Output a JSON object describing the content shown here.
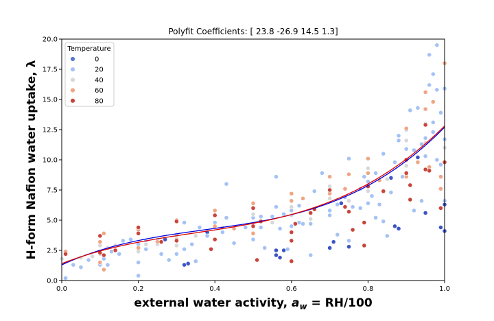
{
  "chart_data": {
    "type": "scatter",
    "title": "Polyfit Coefficients: [ 23.8 -26.9  14.5   1.3]",
    "xlabel": "external water activity, a_w = RH/100",
    "ylabel": "H-form Nafion water uptake, λ",
    "xlim": [
      0,
      1
    ],
    "ylim": [
      0,
      20
    ],
    "xticks": [
      "0.0",
      "0.2",
      "0.4",
      "0.6",
      "0.8",
      "1.0"
    ],
    "yticks": [
      "0.0",
      "2.5",
      "5.0",
      "7.5",
      "10.0",
      "12.5",
      "15.0",
      "17.5",
      "20.0"
    ],
    "grid": false,
    "legend": {
      "title": "Temperature",
      "position": "top-left",
      "entries": [
        {
          "label": "0",
          "color": "#5a78cf"
        },
        {
          "label": "20",
          "color": "#a5c2f5"
        },
        {
          "label": "40",
          "color": "#d8d8d8"
        },
        {
          "label": "60",
          "color": "#f0a583"
        },
        {
          "label": "80",
          "color": "#c8453b"
        }
      ]
    },
    "fit_curves": [
      {
        "color": "#0000dd",
        "coefficients": [
          23.8,
          -26.9,
          14.5,
          1.3
        ],
        "degree_order": "highest-first"
      },
      {
        "color": "#dd0000",
        "coefficients": [
          20.9,
          -21.9,
          12.4,
          1.4
        ],
        "degree_order": "highest-first"
      }
    ],
    "series": [
      {
        "temperature": "0",
        "color": "#3d55c4",
        "points": [
          [
            0.27,
            3.4
          ],
          [
            0.32,
            1.3
          ],
          [
            0.33,
            1.4
          ],
          [
            0.38,
            4.0
          ],
          [
            0.56,
            2.1
          ],
          [
            0.56,
            2.5
          ],
          [
            0.57,
            1.9
          ],
          [
            0.58,
            2.5
          ],
          [
            0.7,
            2.7
          ],
          [
            0.71,
            3.2
          ],
          [
            0.73,
            6.4
          ],
          [
            0.75,
            2.8
          ],
          [
            0.86,
            8.5
          ],
          [
            0.87,
            4.5
          ],
          [
            0.88,
            4.3
          ],
          [
            0.93,
            10.2
          ],
          [
            0.95,
            5.6
          ],
          [
            0.99,
            4.4
          ],
          [
            1.0,
            6.3
          ],
          [
            1.0,
            4.1
          ]
        ]
      },
      {
        "temperature": "20",
        "color": "#a5c2f5",
        "points": [
          [
            0.01,
            0.2
          ],
          [
            0.03,
            1.3
          ],
          [
            0.05,
            1.1
          ],
          [
            0.07,
            1.7
          ],
          [
            0.1,
            1.3
          ],
          [
            0.1,
            2.4
          ],
          [
            0.11,
            1.8
          ],
          [
            0.12,
            1.3
          ],
          [
            0.13,
            2.4
          ],
          [
            0.15,
            2.2
          ],
          [
            0.16,
            3.3
          ],
          [
            0.18,
            3.4
          ],
          [
            0.2,
            1.5
          ],
          [
            0.2,
            0.4
          ],
          [
            0.2,
            3.0
          ],
          [
            0.22,
            2.6
          ],
          [
            0.22,
            3.3
          ],
          [
            0.25,
            3.4
          ],
          [
            0.26,
            2.2
          ],
          [
            0.28,
            1.7
          ],
          [
            0.3,
            2.2
          ],
          [
            0.3,
            3.8
          ],
          [
            0.32,
            2.6
          ],
          [
            0.32,
            4.8
          ],
          [
            0.34,
            3.0
          ],
          [
            0.35,
            1.6
          ],
          [
            0.36,
            4.4
          ],
          [
            0.38,
            3.7
          ],
          [
            0.4,
            4.8
          ],
          [
            0.42,
            4.0
          ],
          [
            0.43,
            5.2
          ],
          [
            0.43,
            8.0
          ],
          [
            0.45,
            4.3
          ],
          [
            0.45,
            3.1
          ],
          [
            0.48,
            4.4
          ],
          [
            0.5,
            3.4
          ],
          [
            0.5,
            5.2
          ],
          [
            0.52,
            5.3
          ],
          [
            0.52,
            4.4
          ],
          [
            0.53,
            2.7
          ],
          [
            0.55,
            5.3
          ],
          [
            0.56,
            6.1
          ],
          [
            0.56,
            8.6
          ],
          [
            0.57,
            4.3
          ],
          [
            0.58,
            5.5
          ],
          [
            0.59,
            2.6
          ],
          [
            0.6,
            4.5
          ],
          [
            0.6,
            5.8
          ],
          [
            0.62,
            6.2
          ],
          [
            0.62,
            4.8
          ],
          [
            0.63,
            4.7
          ],
          [
            0.65,
            4.7
          ],
          [
            0.65,
            2.1
          ],
          [
            0.66,
            7.4
          ],
          [
            0.68,
            8.9
          ],
          [
            0.7,
            5.4
          ],
          [
            0.7,
            5.8
          ],
          [
            0.72,
            3.8
          ],
          [
            0.72,
            6.3
          ],
          [
            0.74,
            6.9
          ],
          [
            0.75,
            10.1
          ],
          [
            0.75,
            3.3
          ],
          [
            0.76,
            6.1
          ],
          [
            0.78,
            6.0
          ],
          [
            0.78,
            7.6
          ],
          [
            0.79,
            8.6
          ],
          [
            0.8,
            8.2
          ],
          [
            0.8,
            6.4
          ],
          [
            0.81,
            7.0
          ],
          [
            0.82,
            5.2
          ],
          [
            0.82,
            8.9
          ],
          [
            0.83,
            6.3
          ],
          [
            0.84,
            4.9
          ],
          [
            0.84,
            10.5
          ],
          [
            0.85,
            3.7
          ],
          [
            0.86,
            7.3
          ],
          [
            0.87,
            9.8
          ],
          [
            0.88,
            11.6
          ],
          [
            0.88,
            12.0
          ],
          [
            0.89,
            8.6
          ],
          [
            0.9,
            12.5
          ],
          [
            0.9,
            10.9
          ],
          [
            0.91,
            14.1
          ],
          [
            0.92,
            10.8
          ],
          [
            0.92,
            5.8
          ],
          [
            0.93,
            14.3
          ],
          [
            0.94,
            11.3
          ],
          [
            0.94,
            6.6
          ],
          [
            0.95,
            11.8
          ],
          [
            0.95,
            10.3
          ],
          [
            0.96,
            18.7
          ],
          [
            0.96,
            16.2
          ],
          [
            0.97,
            13.1
          ],
          [
            0.97,
            17.1
          ],
          [
            0.97,
            12.3
          ],
          [
            0.98,
            19.5
          ],
          [
            0.98,
            15.8
          ],
          [
            0.98,
            10.0
          ],
          [
            0.99,
            13.9
          ],
          [
            0.99,
            9.6
          ],
          [
            1.0,
            15.9
          ],
          [
            1.0,
            11.7
          ],
          [
            1.0,
            6.6
          ]
        ]
      },
      {
        "temperature": "40",
        "color": "#d8d8d8",
        "points": [
          [
            0.0,
            1.8
          ],
          [
            0.05,
            1.9
          ],
          [
            0.08,
            2.0
          ],
          [
            0.1,
            2.2
          ],
          [
            0.1,
            2.9
          ],
          [
            0.12,
            2.7
          ],
          [
            0.14,
            2.9
          ],
          [
            0.2,
            2.4
          ],
          [
            0.22,
            3.0
          ],
          [
            0.25,
            3.0
          ],
          [
            0.3,
            2.9
          ],
          [
            0.3,
            3.6
          ],
          [
            0.35,
            3.7
          ],
          [
            0.4,
            3.4
          ],
          [
            0.42,
            4.4
          ],
          [
            0.5,
            4.6
          ],
          [
            0.5,
            5.5
          ],
          [
            0.55,
            4.8
          ],
          [
            0.6,
            5.4
          ],
          [
            0.6,
            6.1
          ],
          [
            0.65,
            5.1
          ],
          [
            0.7,
            6.8
          ],
          [
            0.7,
            7.8
          ],
          [
            0.75,
            6.6
          ],
          [
            0.8,
            7.4
          ],
          [
            0.8,
            9.3
          ],
          [
            0.85,
            8.4
          ],
          [
            0.9,
            9.5
          ],
          [
            0.9,
            11.6
          ],
          [
            0.95,
            11.4
          ],
          [
            0.95,
            13.0
          ],
          [
            1.0,
            11.0
          ]
        ]
      },
      {
        "temperature": "60",
        "color": "#f0a583",
        "points": [
          [
            0.01,
            2.4
          ],
          [
            0.1,
            1.5
          ],
          [
            0.1,
            3.2
          ],
          [
            0.11,
            0.9
          ],
          [
            0.11,
            3.9
          ],
          [
            0.2,
            2.7
          ],
          [
            0.2,
            4.2
          ],
          [
            0.25,
            3.2
          ],
          [
            0.3,
            3.4
          ],
          [
            0.3,
            5.0
          ],
          [
            0.4,
            4.5
          ],
          [
            0.4,
            5.8
          ],
          [
            0.45,
            4.3
          ],
          [
            0.5,
            6.4
          ],
          [
            0.5,
            3.9
          ],
          [
            0.6,
            6.6
          ],
          [
            0.6,
            7.2
          ],
          [
            0.63,
            6.8
          ],
          [
            0.7,
            7.2
          ],
          [
            0.7,
            8.6
          ],
          [
            0.74,
            7.6
          ],
          [
            0.75,
            8.8
          ],
          [
            0.8,
            8.9
          ],
          [
            0.8,
            10.1
          ],
          [
            0.83,
            8.3
          ],
          [
            0.9,
            8.6
          ],
          [
            0.9,
            12.6
          ],
          [
            0.93,
            9.8
          ],
          [
            0.95,
            15.6
          ],
          [
            0.95,
            14.2
          ],
          [
            0.96,
            9.4
          ],
          [
            0.97,
            14.8
          ],
          [
            0.99,
            8.6
          ],
          [
            0.99,
            7.6
          ],
          [
            1.0,
            18.0
          ]
        ]
      },
      {
        "temperature": "80",
        "color": "#c8453b",
        "points": [
          [
            0.01,
            2.2
          ],
          [
            0.1,
            2.3
          ],
          [
            0.1,
            3.7
          ],
          [
            0.11,
            2.1
          ],
          [
            0.14,
            2.5
          ],
          [
            0.2,
            4.4
          ],
          [
            0.2,
            3.9
          ],
          [
            0.26,
            3.2
          ],
          [
            0.3,
            3.3
          ],
          [
            0.3,
            4.9
          ],
          [
            0.39,
            2.6
          ],
          [
            0.4,
            3.4
          ],
          [
            0.4,
            5.4
          ],
          [
            0.5,
            4.5
          ],
          [
            0.5,
            6.0
          ],
          [
            0.51,
            1.7
          ],
          [
            0.52,
            4.9
          ],
          [
            0.6,
            1.6
          ],
          [
            0.6,
            4.0
          ],
          [
            0.6,
            3.3
          ],
          [
            0.61,
            4.7
          ],
          [
            0.65,
            5.6
          ],
          [
            0.66,
            5.9
          ],
          [
            0.7,
            7.5
          ],
          [
            0.74,
            6.1
          ],
          [
            0.75,
            5.7
          ],
          [
            0.76,
            4.2
          ],
          [
            0.79,
            2.9
          ],
          [
            0.79,
            4.8
          ],
          [
            0.8,
            7.8
          ],
          [
            0.84,
            7.4
          ],
          [
            0.9,
            10.0
          ],
          [
            0.9,
            8.9
          ],
          [
            0.91,
            6.7
          ],
          [
            0.91,
            7.9
          ],
          [
            0.95,
            12.9
          ],
          [
            0.95,
            9.2
          ],
          [
            0.96,
            9.1
          ],
          [
            0.99,
            6.0
          ],
          [
            1.0,
            9.8
          ]
        ]
      }
    ]
  }
}
